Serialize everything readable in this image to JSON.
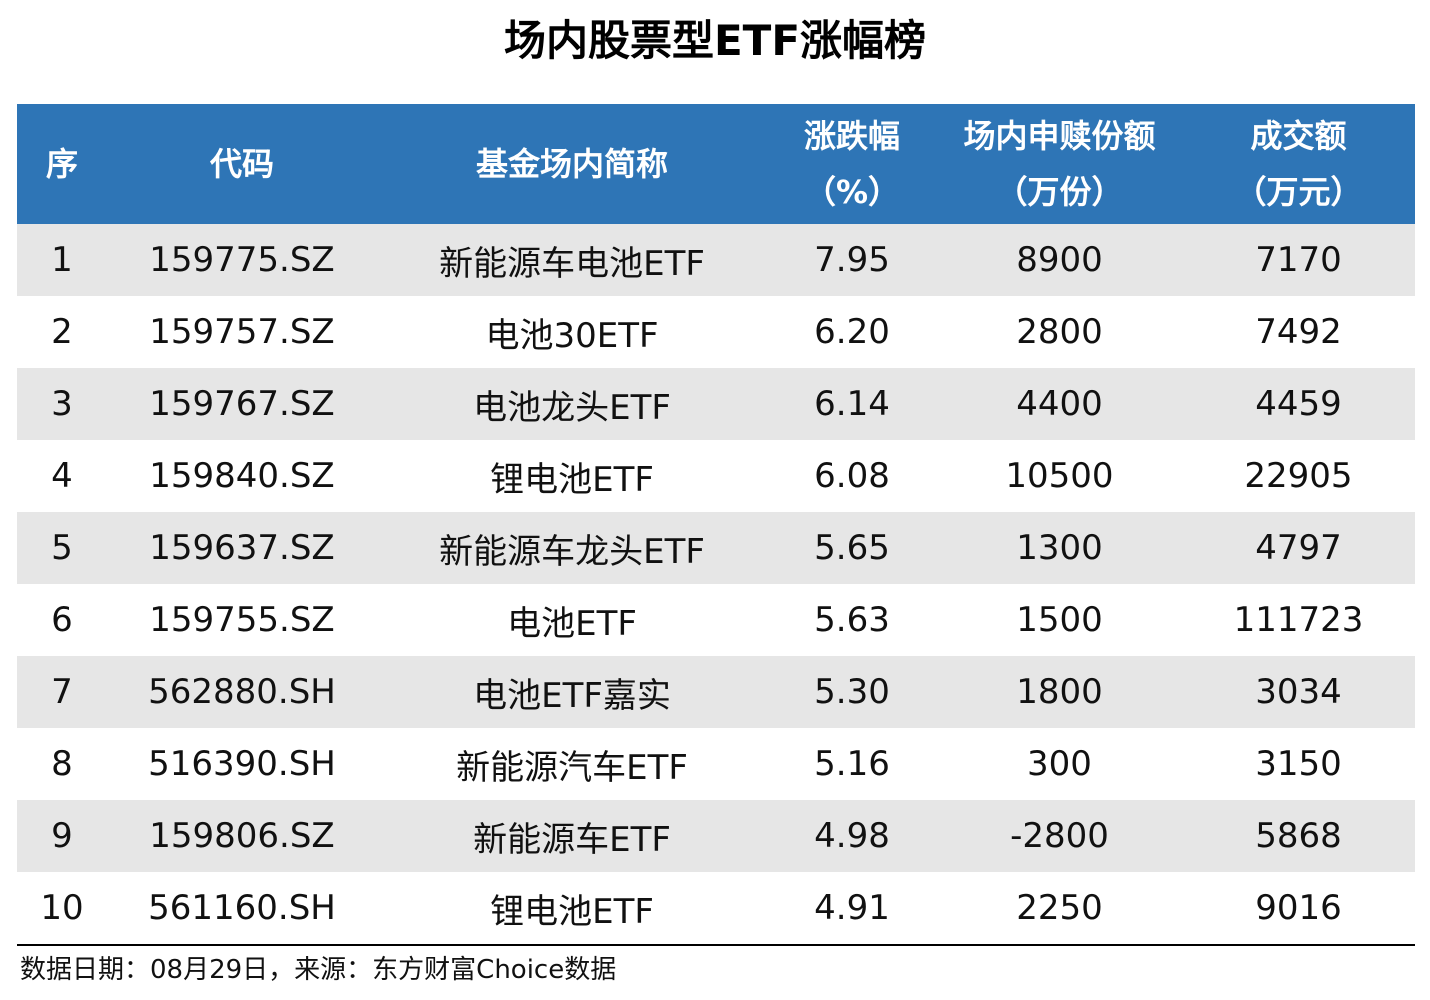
{
  "title": "场内股票型ETF涨幅榜",
  "header": {
    "seq": "序",
    "code": "代码",
    "name": "基金场内简称",
    "change_line1": "涨跌幅",
    "change_line2": "（%）",
    "units_line1": "场内申赎份额",
    "units_line2": "（万份）",
    "turnover_line1": "成交额",
    "turnover_line2": "（万元）"
  },
  "rows": [
    {
      "seq": "1",
      "code": "159775.SZ",
      "name": "新能源车电池ETF",
      "change": "7.95",
      "units": "8900",
      "turnover": "7170"
    },
    {
      "seq": "2",
      "code": "159757.SZ",
      "name": "电池30ETF",
      "change": "6.20",
      "units": "2800",
      "turnover": "7492"
    },
    {
      "seq": "3",
      "code": "159767.SZ",
      "name": "电池龙头ETF",
      "change": "6.14",
      "units": "4400",
      "turnover": "4459"
    },
    {
      "seq": "4",
      "code": "159840.SZ",
      "name": "锂电池ETF",
      "change": "6.08",
      "units": "10500",
      "turnover": "22905"
    },
    {
      "seq": "5",
      "code": "159637.SZ",
      "name": "新能源车龙头ETF",
      "change": "5.65",
      "units": "1300",
      "turnover": "4797"
    },
    {
      "seq": "6",
      "code": "159755.SZ",
      "name": "电池ETF",
      "change": "5.63",
      "units": "1500",
      "turnover": "111723"
    },
    {
      "seq": "7",
      "code": "562880.SH",
      "name": "电池ETF嘉实",
      "change": "5.30",
      "units": "1800",
      "turnover": "3034"
    },
    {
      "seq": "8",
      "code": "516390.SH",
      "name": "新能源汽车ETF",
      "change": "5.16",
      "units": "300",
      "turnover": "3150"
    },
    {
      "seq": "9",
      "code": "159806.SZ",
      "name": "新能源车ETF",
      "change": "4.98",
      "units": "-2800",
      "turnover": "5868"
    },
    {
      "seq": "10",
      "code": "561160.SH",
      "name": "锂电池ETF",
      "change": "4.91",
      "units": "2250",
      "turnover": "9016"
    }
  ],
  "footnote": "数据日期：08月29日，来源：东方财富Choice数据",
  "colors": {
    "header_bg": "#2e75b6",
    "stripe_bg": "#e6e6e6"
  }
}
